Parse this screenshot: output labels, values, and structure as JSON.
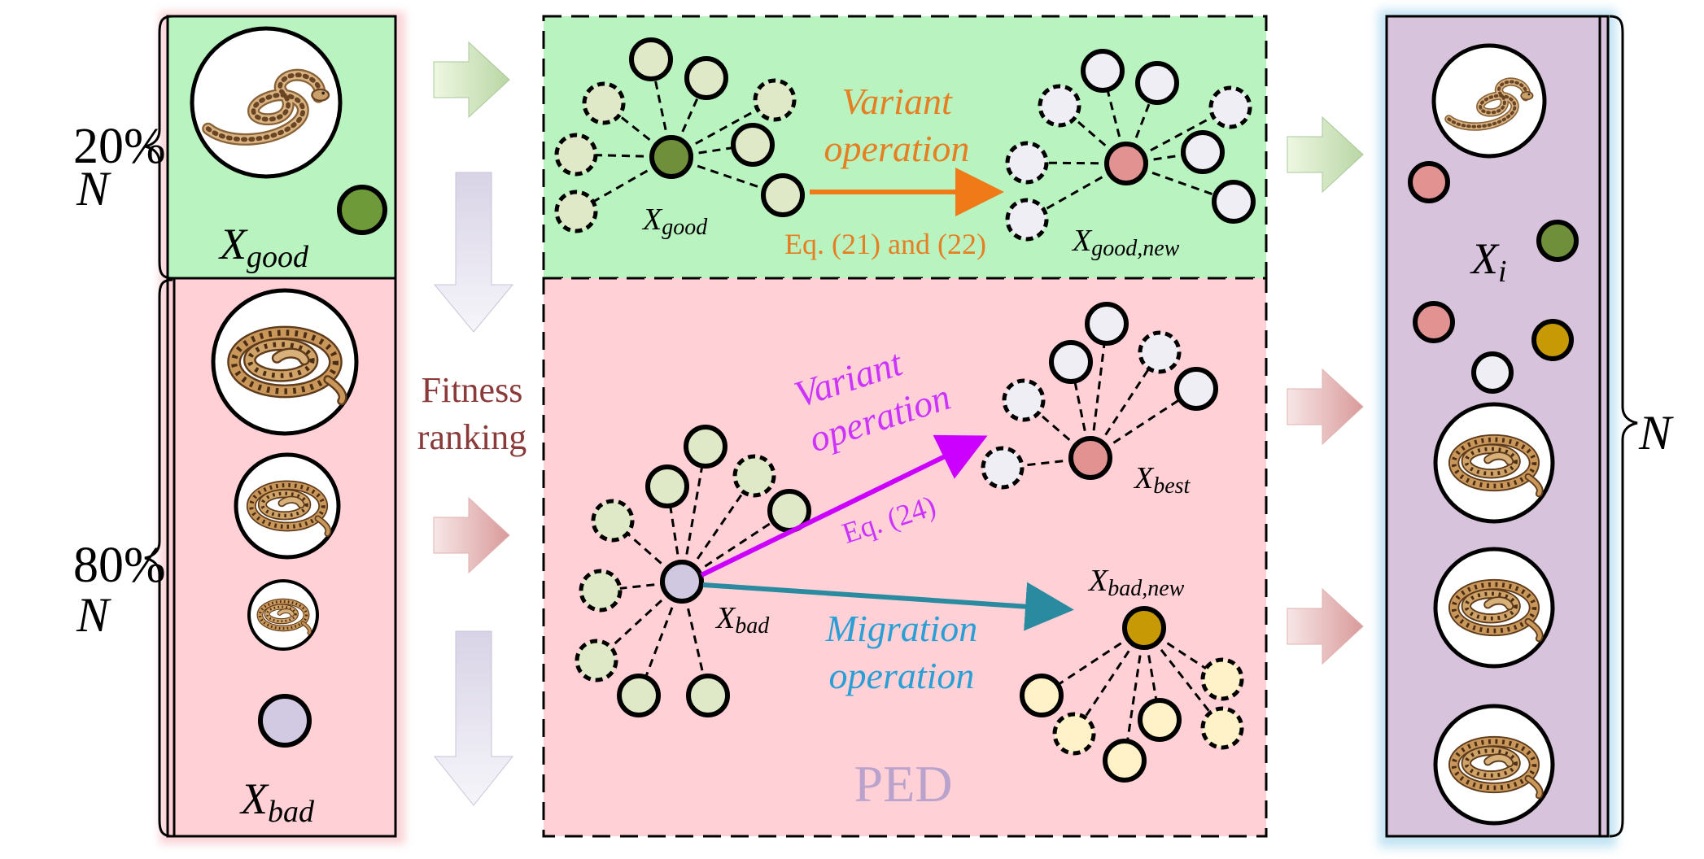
{
  "colors": {
    "good_bg": "#b9f3c0",
    "bad_bg": "#ffd0d6",
    "pop_bg": "#d7c3dc",
    "pop_glow": "#a9d8ee",
    "bad_glow": "#f7b2b9",
    "orange": "#f07a18",
    "orange_text": "#e67e22",
    "magenta": "#cc00ff",
    "magenta_text": "#cc33ff",
    "teal": "#2a8aa0",
    "teal_text": "#2a9fd6",
    "fitness_text": "#8b3a3a",
    "ped_text": "#b9a2cc",
    "green_node": "#6f8f3a",
    "light_green_node": "#dfe9c8",
    "pink_node": "#e39292",
    "lavender_node": "#cfc8e0",
    "white_node": "#eeeef4",
    "gold_node": "#c79a05",
    "cream_node": "#fff2c8"
  },
  "icons": [
    "snake-icon"
  ],
  "labels": {
    "pct20": "20%",
    "pct80": "80%",
    "n": "N",
    "n_right": "N",
    "x_good_left": {
      "main": "X",
      "sub": "good"
    },
    "x_bad_left": {
      "main": "X",
      "sub": "bad"
    },
    "fitness_line1": "Fitness",
    "fitness_line2": "ranking",
    "variant_op_top_line1": "Variant",
    "variant_op_top_line2": "operation",
    "eq_21_22": "Eq. (21) and (22)",
    "x_good_mid": {
      "main": "X",
      "sub": "good"
    },
    "x_good_new": {
      "main": "X",
      "sub": "good,new"
    },
    "variant_op_bottom_line1": "Variant",
    "variant_op_bottom_line2": "operation",
    "eq_24": "Eq. (24)",
    "migration_line1": "Migration",
    "migration_line2": "operation",
    "x_bad_mid": {
      "main": "X",
      "sub": "bad"
    },
    "x_best": {
      "main": "X",
      "sub": "best"
    },
    "x_bad_new": {
      "main": "X",
      "sub": "bad,new"
    },
    "ped": "PED",
    "x_i": {
      "main": "X",
      "sub": "i"
    }
  }
}
